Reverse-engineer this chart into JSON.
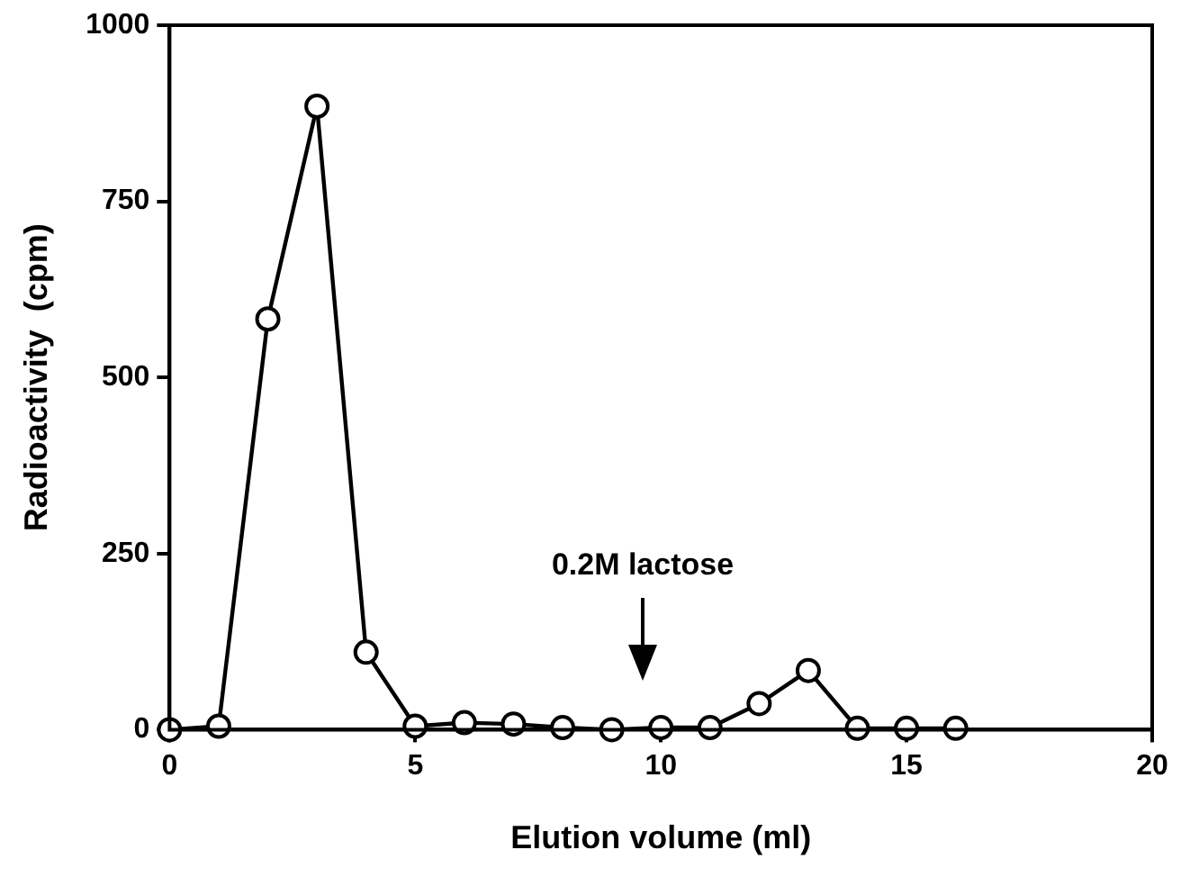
{
  "chart_data": {
    "type": "line",
    "xlabel": "Elution volume (ml)",
    "ylabel": "Radioactivity  (cpm)",
    "x": [
      0,
      1,
      2,
      3,
      4,
      5,
      6,
      7,
      8,
      9,
      10,
      11,
      12,
      13,
      14,
      15,
      16
    ],
    "series": [
      {
        "color": "#000000",
        "values": [
          0,
          5,
          583,
          885,
          110,
          5,
          10,
          8,
          3,
          0,
          3,
          3,
          37,
          84,
          2,
          2,
          2
        ]
      }
    ],
    "xlim": [
      0,
      20
    ],
    "xticks": [
      0,
      5,
      10,
      15,
      20
    ],
    "ylim": [
      0,
      1000
    ],
    "yticks": [
      0,
      250,
      500,
      750,
      1000
    ],
    "marker": "circle",
    "line_style": "solid",
    "grid": false,
    "legend": false,
    "annotations": [
      "0.2M lactose"
    ]
  }
}
